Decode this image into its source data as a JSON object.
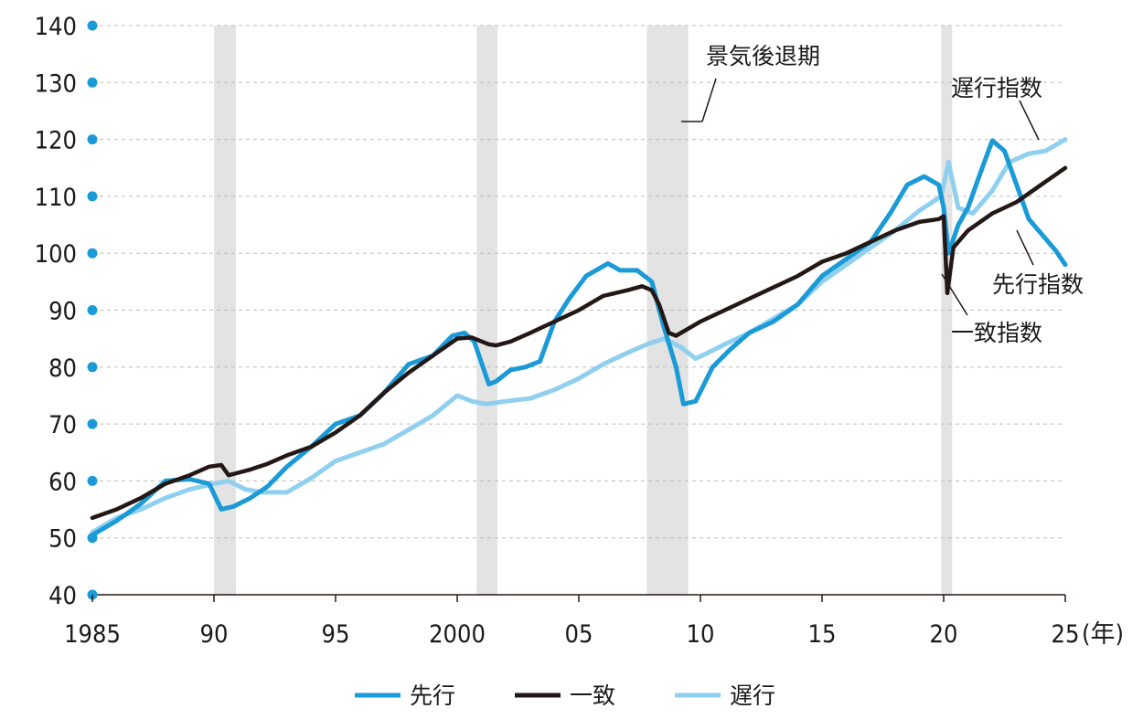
{
  "chart_data": {
    "type": "line",
    "xunit": "(年)",
    "ylim": [
      40,
      140
    ],
    "xlim": [
      1985,
      2025
    ],
    "yticks": [
      40,
      50,
      60,
      70,
      80,
      90,
      100,
      110,
      120,
      130,
      140
    ],
    "ytick_labels": [
      "40",
      "50",
      "60",
      "70",
      "80",
      "90",
      "100",
      "110",
      "120",
      "130",
      "140"
    ],
    "xticks": [
      1985,
      1990,
      1995,
      2000,
      2005,
      2010,
      2015,
      2020,
      2025
    ],
    "xtick_labels": [
      "1985",
      "90",
      "95",
      "2000",
      "05",
      "10",
      "15",
      "20",
      "25"
    ],
    "grid": "horizontal-dashed",
    "legend_position": "bottom",
    "recessions": [
      [
        1990.0,
        1990.9
      ],
      [
        2000.8,
        2001.65
      ],
      [
        2007.8,
        2009.5
      ],
      [
        2019.9,
        2020.35
      ]
    ],
    "annotations": {
      "recession": "景気後退期",
      "lagging": "遅行指数",
      "leading": "先行指数",
      "coincident": "一致指数"
    },
    "colors": {
      "leading": "#1a9ad6",
      "coincident": "#231815",
      "lagging": "#8fcfef",
      "recession": "#e3e3e3",
      "grid": "#bdbdbd"
    },
    "series": [
      {
        "name": "先行",
        "key": "leading",
        "x": [
          1985,
          1986,
          1987,
          1988,
          1989,
          1989.8,
          1990.3,
          1990.8,
          1991.5,
          1992.2,
          1993,
          1994,
          1995,
          1996,
          1997,
          1998,
          1999,
          1999.8,
          2000.3,
          2000.7,
          2001.3,
          2001.6,
          2002.2,
          2002.8,
          2003.4,
          2004,
          2004.6,
          2005.3,
          2006.2,
          2006.7,
          2007.4,
          2008,
          2008.5,
          2009.0,
          2009.3,
          2009.8,
          2010.5,
          2011.2,
          2012,
          2013,
          2014,
          2015,
          2016,
          2017,
          2017.8,
          2018.5,
          2019.2,
          2019.8,
          2020.0,
          2020.2,
          2020.6,
          2021.0,
          2021.5,
          2022.0,
          2022.5,
          2023.0,
          2023.5,
          2024.0,
          2024.6,
          2025.0
        ],
        "values": [
          50.5,
          53,
          56,
          60,
          60.3,
          59.5,
          55,
          55.5,
          57,
          59,
          62.5,
          66,
          70,
          71.5,
          75.5,
          80.5,
          82,
          85.5,
          86,
          84.5,
          77,
          77.5,
          79.5,
          80,
          81,
          88,
          92,
          96,
          98.2,
          97,
          97,
          95,
          87,
          80,
          73.5,
          74,
          80,
          83,
          86,
          88,
          91,
          96,
          99,
          102,
          107,
          112,
          113.5,
          112,
          108,
          100,
          105,
          108,
          114,
          119.8,
          118,
          112,
          106,
          103.5,
          100.5,
          98
        ]
      },
      {
        "name": "一致",
        "key": "coincident",
        "x": [
          1985,
          1986,
          1987,
          1988,
          1989,
          1989.8,
          1990.3,
          1990.6,
          1991.5,
          1992.2,
          1993,
          1994,
          1995,
          1996,
          1997,
          1998,
          1999,
          2000,
          2000.6,
          2001.3,
          2001.6,
          2002.2,
          2003,
          2004,
          2005,
          2006,
          2007,
          2007.6,
          2008.0,
          2008.3,
          2008.7,
          2009.0,
          2009.4,
          2010,
          2011,
          2012,
          2013,
          2014,
          2015,
          2016,
          2017,
          2018,
          2019,
          2019.8,
          2020.0,
          2020.15,
          2020.4,
          2021,
          2022,
          2023,
          2024,
          2025
        ],
        "values": [
          53.5,
          55,
          57,
          59.5,
          61,
          62.5,
          62.8,
          61,
          62,
          63,
          64.5,
          66,
          68.5,
          71.5,
          75.5,
          79,
          82,
          85,
          85.2,
          84,
          83.8,
          84.5,
          86,
          88,
          90,
          92.5,
          93.5,
          94.2,
          93.5,
          91,
          86,
          85.5,
          86.5,
          88,
          90,
          92,
          94,
          96,
          98.5,
          100,
          102,
          104,
          105.5,
          106,
          106.5,
          93,
          101,
          104,
          107,
          109,
          112,
          115
        ]
      },
      {
        "name": "遅行",
        "key": "lagging",
        "x": [
          1985,
          1986,
          1987,
          1988,
          1989,
          1990,
          1990.6,
          1991.3,
          1992,
          1993,
          1994,
          1995,
          1996,
          1997,
          1998,
          1999,
          2000,
          2000.6,
          2001.2,
          2002,
          2003,
          2004,
          2005,
          2006,
          2007,
          2007.8,
          2008.5,
          2009.2,
          2009.8,
          2010.3,
          2011,
          2012,
          2013,
          2014,
          2015,
          2016,
          2017,
          2018,
          2019,
          2019.9,
          2020.2,
          2020.6,
          2021.2,
          2022,
          2022.7,
          2023.5,
          2024.2,
          2025
        ],
        "values": [
          51,
          53.5,
          55,
          57,
          58.5,
          59.5,
          60,
          58.5,
          58,
          58,
          60.5,
          63.5,
          65,
          66.5,
          69,
          71.5,
          75,
          74,
          73.5,
          74,
          74.5,
          76,
          78,
          80.5,
          82.5,
          84,
          85,
          83.5,
          81.5,
          82.5,
          84,
          86,
          88.5,
          91,
          95,
          98,
          101,
          104,
          107.5,
          110,
          116,
          108,
          107,
          111,
          116,
          117.5,
          118,
          120
        ]
      }
    ]
  },
  "legend": [
    {
      "label": "先行",
      "key": "leading"
    },
    {
      "label": "一致",
      "key": "coincident"
    },
    {
      "label": "遅行",
      "key": "lagging"
    }
  ]
}
